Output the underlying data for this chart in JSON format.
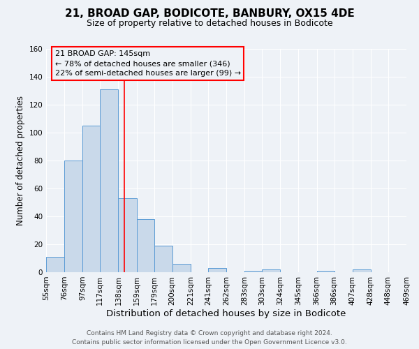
{
  "title": "21, BROAD GAP, BODICOTE, BANBURY, OX15 4DE",
  "subtitle": "Size of property relative to detached houses in Bodicote",
  "xlabel": "Distribution of detached houses by size in Bodicote",
  "ylabel": "Number of detached properties",
  "bar_color": "#c9d9ea",
  "bar_edge_color": "#5b9bd5",
  "bin_edges": [
    55,
    76,
    97,
    117,
    138,
    159,
    179,
    200,
    221,
    241,
    262,
    283,
    303,
    324,
    345,
    366,
    386,
    407,
    428,
    448,
    469
  ],
  "bar_heights": [
    11,
    80,
    105,
    131,
    53,
    38,
    19,
    6,
    0,
    3,
    0,
    1,
    2,
    0,
    0,
    1,
    0,
    2,
    0,
    0
  ],
  "property_size": 145,
  "annotation_line1": "21 BROAD GAP: 145sqm",
  "annotation_line2": "← 78% of detached houses are smaller (346)",
  "annotation_line3": "22% of semi-detached houses are larger (99) →",
  "ylim": [
    0,
    160
  ],
  "yticks": [
    0,
    20,
    40,
    60,
    80,
    100,
    120,
    140,
    160
  ],
  "footer_line1": "Contains HM Land Registry data © Crown copyright and database right 2024.",
  "footer_line2": "Contains public sector information licensed under the Open Government Licence v3.0.",
  "background_color": "#eef2f7",
  "grid_color": "#ffffff",
  "title_fontsize": 11,
  "subtitle_fontsize": 9,
  "xlabel_fontsize": 9.5,
  "ylabel_fontsize": 8.5,
  "tick_fontsize": 7.5,
  "annotation_fontsize": 8,
  "footer_fontsize": 6.5
}
